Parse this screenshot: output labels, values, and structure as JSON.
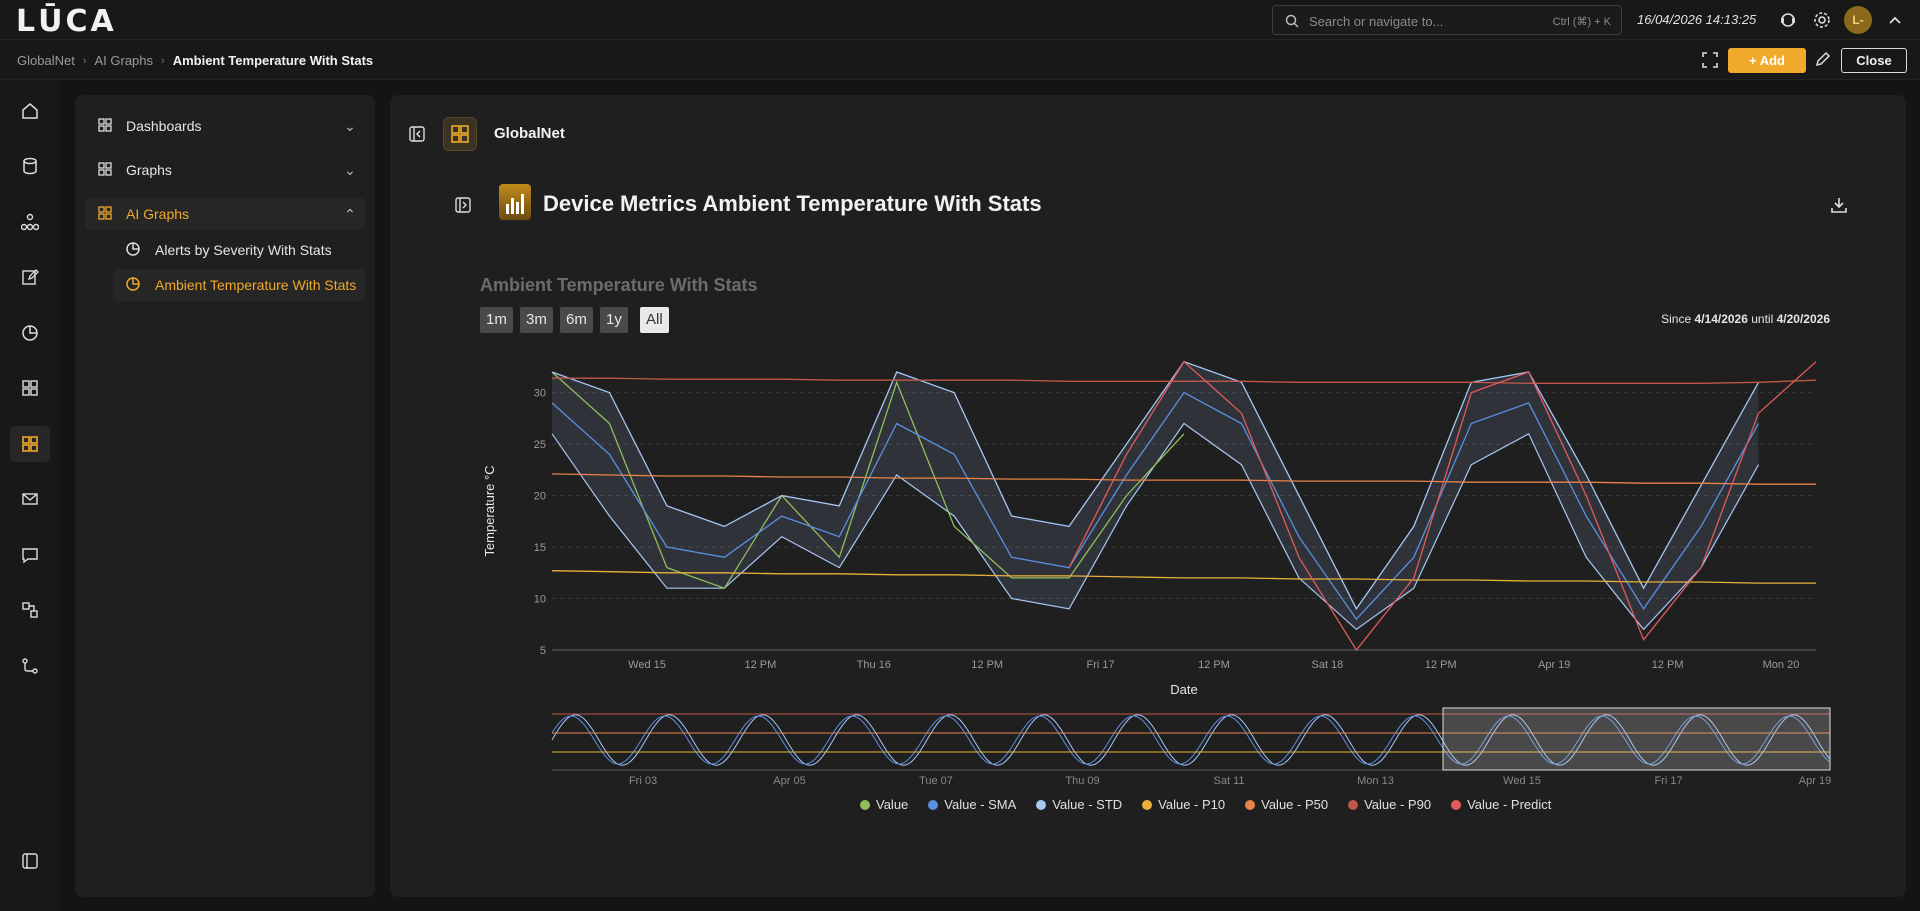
{
  "app": {
    "logo": "LŪCA"
  },
  "search": {
    "placeholder": "Search or navigate to...",
    "shortcut": "Ctrl (⌘) + K"
  },
  "header": {
    "datetime": "16/04/2026 14:13:25",
    "avatar": "L-"
  },
  "breadcrumb": {
    "items": [
      "GlobalNet",
      "AI Graphs"
    ],
    "current": "Ambient Temperature With Stats"
  },
  "actions": {
    "add": "Add",
    "close": "Close"
  },
  "sidebar": {
    "items": [
      {
        "label": "Dashboards"
      },
      {
        "label": "Graphs"
      },
      {
        "label": "AI Graphs"
      }
    ],
    "subitems": [
      {
        "label": "Alerts by Severity With Stats"
      },
      {
        "label": "Ambient Temperature With Stats"
      }
    ]
  },
  "main": {
    "group_title": "GlobalNet",
    "dashboard_title": "Device Metrics Ambient Temperature With Stats"
  },
  "chart_range": {
    "buttons": [
      "1m",
      "3m",
      "6m",
      "1y",
      "All"
    ],
    "selected": "All",
    "since_prefix": "Since",
    "since": "4/14/2026",
    "until_word": "until",
    "until": "4/20/2026"
  },
  "colors": {
    "accent": "#f0a92a",
    "value": "#8fbf5a",
    "sma": "#5b8fe0",
    "std": "#a7c6f5",
    "p10": "#e8b23a",
    "p50": "#e8834a",
    "p90": "#c0574a",
    "predict": "#e25a5a"
  },
  "chart_data": {
    "type": "line",
    "title": "Ambient Temperature With Stats",
    "xlabel": "Date",
    "ylabel": "Temperature °C",
    "ylim": [
      5,
      32
    ],
    "yticks": [
      5,
      10,
      15,
      20,
      25,
      30
    ],
    "xticks": [
      "Wed 15",
      "12 PM",
      "Thu 16",
      "12 PM",
      "Fri 17",
      "12 PM",
      "Sat 18",
      "12 PM",
      "Apr 19",
      "12 PM",
      "Mon 20"
    ],
    "navigator_ticks": [
      "Fri 03",
      "Apr 05",
      "Tue 07",
      "Thu 09",
      "Sat 11",
      "Mon 13",
      "Wed 15",
      "Fri 17",
      "Apr 19"
    ],
    "x": [
      0,
      0.5,
      1,
      1.5,
      2,
      2.5,
      3,
      3.5,
      4,
      4.5,
      5,
      5.5,
      6,
      6.5,
      7,
      7.5,
      8,
      8.5,
      9,
      9.5,
      10,
      10.5,
      11
    ],
    "series": [
      {
        "name": "Value",
        "values": [
          32,
          27,
          13,
          11,
          20,
          14,
          31,
          17,
          12,
          12,
          20,
          26,
          null,
          null,
          null,
          null,
          null,
          null,
          null,
          null,
          null,
          null,
          null
        ]
      },
      {
        "name": "Value - SMA",
        "values": [
          29,
          24,
          15,
          14,
          18,
          16,
          27,
          24,
          14,
          13,
          22,
          30,
          27,
          16,
          8,
          14,
          27,
          29,
          18,
          9,
          17,
          27,
          null
        ]
      },
      {
        "name": "Value - STD",
        "values": [
          32,
          30,
          19,
          17,
          20,
          19,
          32,
          30,
          18,
          17,
          25,
          33,
          31,
          20,
          9,
          17,
          31,
          32,
          22,
          11,
          21,
          31,
          null
        ]
      },
      {
        "name": "Value - P10",
        "values": [
          12.7,
          12.6,
          12.5,
          12.5,
          12.4,
          12.4,
          12.3,
          12.3,
          12.2,
          12.2,
          12.1,
          12.0,
          12.0,
          11.9,
          11.9,
          11.8,
          11.8,
          11.7,
          11.7,
          11.6,
          11.6,
          11.5,
          11.5
        ]
      },
      {
        "name": "Value - P50",
        "values": [
          22.1,
          22.0,
          21.9,
          21.9,
          21.8,
          21.8,
          21.7,
          21.7,
          21.6,
          21.6,
          21.5,
          21.5,
          21.5,
          21.4,
          21.4,
          21.4,
          21.3,
          21.3,
          21.3,
          21.2,
          21.2,
          21.1,
          21.1
        ]
      },
      {
        "name": "Value - P90",
        "values": [
          31.4,
          31.4,
          31.3,
          31.3,
          31.3,
          31.2,
          31.2,
          31.2,
          31.2,
          31.1,
          31.1,
          31.1,
          31.1,
          31.0,
          31.0,
          31.0,
          31.0,
          30.9,
          30.9,
          30.9,
          30.9,
          31.0,
          31.2
        ]
      },
      {
        "name": "Value - Predict",
        "values": [
          null,
          null,
          null,
          null,
          null,
          null,
          null,
          null,
          null,
          13,
          24,
          33,
          28,
          14,
          5,
          12,
          30,
          32,
          20,
          6,
          13,
          28,
          33
        ]
      }
    ],
    "grid": true,
    "legend_position": "bottom"
  }
}
